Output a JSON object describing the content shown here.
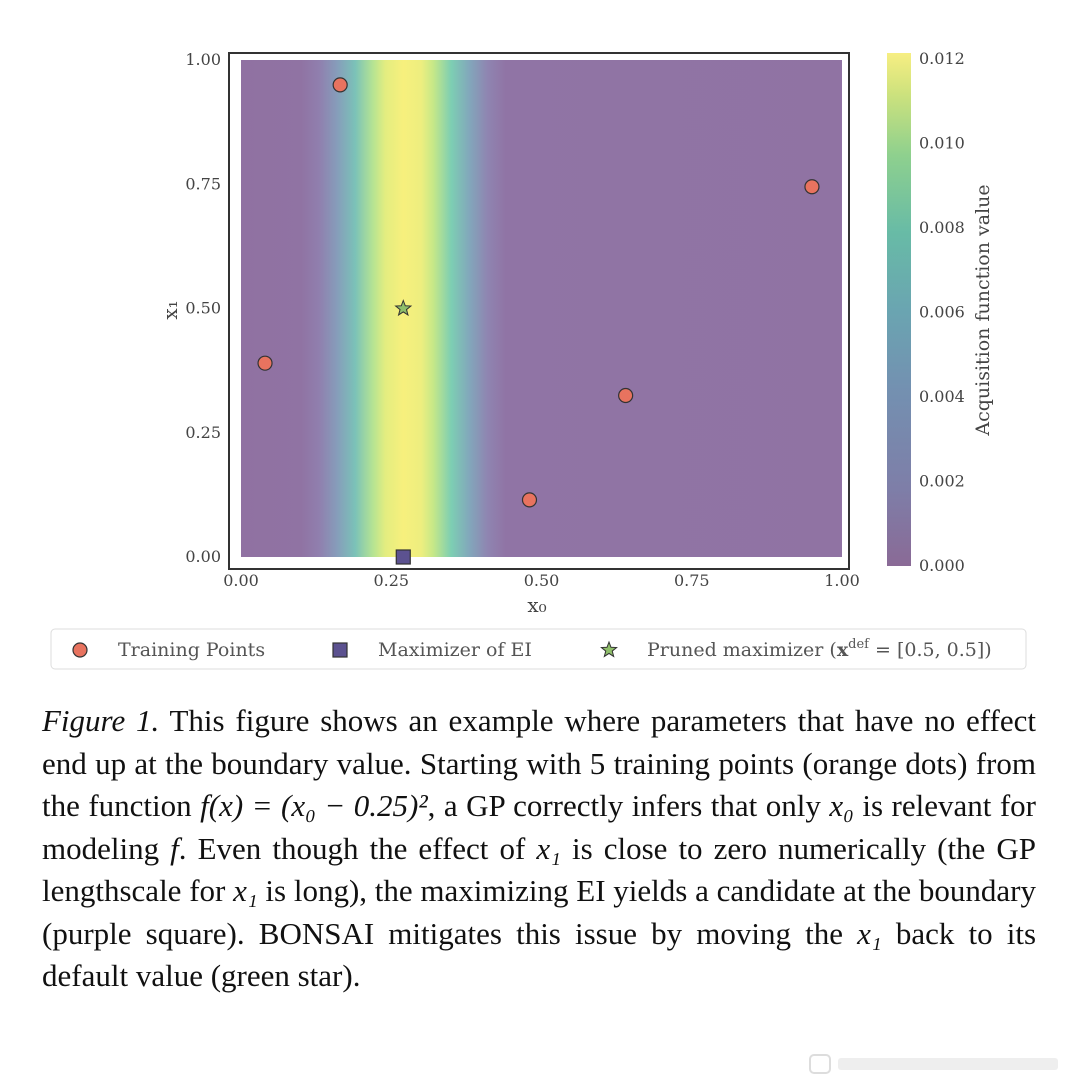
{
  "chart_data": {
    "type": "heatmap",
    "xlabel": "x₀",
    "ylabel": "x₁",
    "xlim": [
      0,
      1
    ],
    "ylim": [
      0,
      1
    ],
    "x_ticks": [
      "0.00",
      "0.25",
      "0.50",
      "0.75",
      "1.00"
    ],
    "y_ticks": [
      "0.00",
      "0.25",
      "0.50",
      "0.75",
      "1.00"
    ],
    "colorbar": {
      "label": "Acquisition function value",
      "range": [
        0,
        0.012
      ],
      "ticks": [
        "0.000",
        "0.002",
        "0.004",
        "0.006",
        "0.008",
        "0.010",
        "0.012"
      ],
      "colormap": "viridis",
      "alpha": 0.6
    },
    "heatmap_profile": {
      "varies_along": "x0",
      "x0": [
        0.0,
        0.1,
        0.13,
        0.16,
        0.19,
        0.22,
        0.24,
        0.27,
        0.3,
        0.32,
        0.35,
        0.38,
        0.41,
        0.44,
        1.0
      ],
      "value": [
        0.0006,
        0.0007,
        0.0014,
        0.0035,
        0.0065,
        0.0098,
        0.0112,
        0.0118,
        0.0115,
        0.0103,
        0.0075,
        0.0043,
        0.0018,
        0.0008,
        0.0007
      ]
    },
    "series": [
      {
        "name": "Training Points",
        "marker": "circle",
        "color": "#e8735f",
        "points": [
          {
            "x": 0.04,
            "y": 0.39
          },
          {
            "x": 0.165,
            "y": 0.95
          },
          {
            "x": 0.48,
            "y": 0.115
          },
          {
            "x": 0.64,
            "y": 0.325
          },
          {
            "x": 0.95,
            "y": 0.745
          }
        ]
      },
      {
        "name": "Maximizer of EI",
        "marker": "square",
        "color": "#5c5290",
        "points": [
          {
            "x": 0.27,
            "y": 0.0
          }
        ]
      },
      {
        "name": "Pruned maximizer",
        "marker": "star",
        "color": "#8fbf6a",
        "points": [
          {
            "x": 0.27,
            "y": 0.5
          }
        ]
      }
    ]
  },
  "legend": {
    "training": "Training Points",
    "maximizer": "Maximizer of EI",
    "pruned_prefix": "Pruned maximizer (",
    "pruned_bold": "x",
    "pruned_sup": "def",
    "pruned_suffix": " = [0.5, 0.5])"
  },
  "caption": {
    "label": "Figure 1.",
    "t1": " This figure shows an example where parameters that have no effect end up at the boundary value. Starting with 5 training points (orange dots) from the function ",
    "m1": "f(x) = (x₀ − 0.25)²",
    "t2": ", a GP correctly infers that only ",
    "m2": "x₀",
    "t3": " is relevant for modeling ",
    "m3": "f",
    "t4": ". Even though the effect of ",
    "m4": "x₁",
    "t5": " is close to zero numerically (the GP lengthscale for ",
    "m5": "x₁",
    "t6": " is long), the maximizing EI yields a candidate at the boundary (purple square). BONSAI mitigates this issue by moving the ",
    "m6": "x₁",
    "t7": " back to its default value (green star)."
  },
  "colors": {
    "training": "#e8735f",
    "maximizer": "#5c5290",
    "pruned": "#8fbf6a",
    "heatmap_base": "#8a6a96",
    "heatmap_peak": "#f7ee82"
  }
}
